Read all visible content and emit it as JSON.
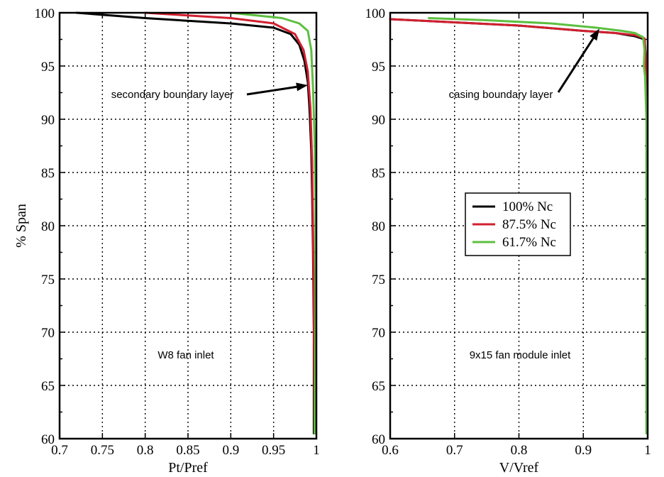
{
  "chart_data": [
    {
      "type": "line",
      "title": "",
      "xlabel": "Pt/Pref",
      "ylabel": "% Span",
      "xlim": [
        0.7,
        1.0
      ],
      "ylim": [
        60,
        100
      ],
      "xticks": [
        0.7,
        0.75,
        0.8,
        0.85,
        0.9,
        0.95,
        1.0
      ],
      "xtick_labels": [
        "0.7",
        "0.75",
        "0.8",
        "0.85",
        "0.9",
        "0.95",
        "1"
      ],
      "yticks": [
        60,
        65,
        70,
        75,
        80,
        85,
        90,
        95,
        100
      ],
      "ytick_labels": [
        "60",
        "65",
        "70",
        "75",
        "80",
        "85",
        "90",
        "95",
        "100"
      ],
      "grid": true,
      "annotations": [
        {
          "text": "secondary boundary layer",
          "arrow_to": {
            "x": 0.99,
            "y": 93.2
          }
        },
        {
          "text": "W8 fan inlet"
        }
      ],
      "series": [
        {
          "name": "100% Nc",
          "color": "#000000",
          "points": [
            [
              0.72,
              100
            ],
            [
              0.8,
              99.5
            ],
            [
              0.9,
              99
            ],
            [
              0.95,
              98.6
            ],
            [
              0.97,
              98
            ],
            [
              0.98,
              97
            ],
            [
              0.986,
              95.5
            ],
            [
              0.99,
              93.5
            ],
            [
              0.992,
              91
            ],
            [
              0.994,
              87
            ],
            [
              0.995,
              83
            ],
            [
              0.996,
              78
            ],
            [
              0.997,
              70
            ],
            [
              0.997,
              60.5
            ]
          ]
        },
        {
          "name": "87.5% Nc",
          "color": "#d11f2f",
          "points": [
            [
              0.8,
              100
            ],
            [
              0.9,
              99.5
            ],
            [
              0.95,
              99
            ],
            [
              0.975,
              98
            ],
            [
              0.985,
              96.5
            ],
            [
              0.99,
              94.5
            ],
            [
              0.993,
              91
            ],
            [
              0.995,
              86
            ],
            [
              0.996,
              80
            ],
            [
              0.997,
              73
            ],
            [
              0.998,
              60.5
            ]
          ]
        },
        {
          "name": "61.7% Nc",
          "color": "#5cbf3f",
          "points": [
            [
              0.9,
              100
            ],
            [
              0.96,
              99.5
            ],
            [
              0.98,
              99
            ],
            [
              0.99,
              98.3
            ],
            [
              0.994,
              96.5
            ],
            [
              0.996,
              93
            ],
            [
              0.998,
              88
            ],
            [
              0.999,
              82
            ],
            [
              0.999,
              72
            ],
            [
              0.998,
              60.5
            ]
          ]
        }
      ]
    },
    {
      "type": "line",
      "title": "",
      "xlabel": "V/Vref",
      "ylabel": "",
      "xlim": [
        0.6,
        1.0
      ],
      "ylim": [
        60,
        100
      ],
      "xticks": [
        0.6,
        0.7,
        0.8,
        0.9,
        1.0
      ],
      "xtick_labels": [
        "0.6",
        "0.7",
        "0.8",
        "0.9",
        "1"
      ],
      "yticks": [
        60,
        65,
        70,
        75,
        80,
        85,
        90,
        95,
        100
      ],
      "ytick_labels": [
        "60",
        "65",
        "70",
        "75",
        "80",
        "85",
        "90",
        "95",
        "100"
      ],
      "grid": true,
      "legend_position": "center-right",
      "annotations": [
        {
          "text": "casing boundary layer",
          "arrow_to": {
            "x": 0.925,
            "y": 98.5
          }
        },
        {
          "text": "9x15 fan module inlet"
        }
      ],
      "series": [
        {
          "name": "100% Nc",
          "color": "#000000",
          "points": [
            [
              0.6,
              99.4
            ],
            [
              0.7,
              99.1
            ],
            [
              0.8,
              98.8
            ],
            [
              0.9,
              98.3
            ],
            [
              0.95,
              98.1
            ],
            [
              0.98,
              97.8
            ],
            [
              0.995,
              97.5
            ],
            [
              0.997,
              96
            ],
            [
              0.998,
              93
            ],
            [
              0.999,
              85
            ],
            [
              0.999,
              60.5
            ]
          ]
        },
        {
          "name": "87.5% Nc",
          "color": "#d11f2f",
          "points": [
            [
              0.6,
              99.4
            ],
            [
              0.7,
              99.1
            ],
            [
              0.8,
              98.8
            ],
            [
              0.9,
              98.3
            ],
            [
              0.95,
              98.1
            ],
            [
              0.98,
              97.9
            ],
            [
              0.995,
              97.6
            ],
            [
              0.997,
              95.5
            ],
            [
              0.998,
              93
            ],
            [
              0.999,
              85
            ],
            [
              0.999,
              60.5
            ]
          ]
        },
        {
          "name": "61.7% Nc",
          "color": "#5cbf3f",
          "points": [
            [
              0.66,
              99.5
            ],
            [
              0.75,
              99.3
            ],
            [
              0.85,
              99
            ],
            [
              0.92,
              98.6
            ],
            [
              0.96,
              98.3
            ],
            [
              0.98,
              98.1
            ],
            [
              0.993,
              97.7
            ],
            [
              0.995,
              96.5
            ],
            [
              0.994,
              95
            ],
            [
              0.996,
              94
            ],
            [
              0.998,
              90
            ],
            [
              0.998,
              80
            ],
            [
              0.998,
              60.5
            ]
          ]
        }
      ]
    }
  ]
}
